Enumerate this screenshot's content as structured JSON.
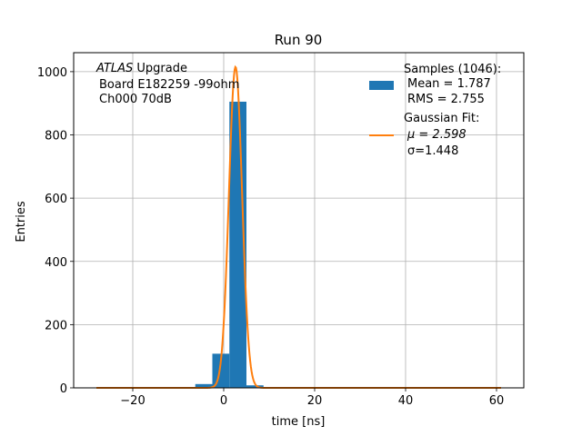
{
  "chart_data": {
    "type": "bar",
    "title": "Run 90",
    "xlabel": "time [ns]",
    "ylabel": "Entries",
    "xlim": [
      -33,
      66
    ],
    "ylim": [
      0,
      1060
    ],
    "xticks": [
      -20,
      0,
      20,
      40,
      60
    ],
    "yticks": [
      0,
      200,
      400,
      600,
      800,
      1000
    ],
    "xtick_labels": [
      "−20",
      "0",
      "20",
      "40",
      "60"
    ],
    "ytick_labels": [
      "0",
      "200",
      "400",
      "600",
      "800",
      "1000"
    ],
    "grid": true,
    "legend_placement": "top-right",
    "annotation": {
      "lines": [
        "ATLAS Upgrade",
        "Board E182259 -99ohm",
        "Ch000 70dB"
      ],
      "italic_word": "ATLAS",
      "rest_of_first_line": " Upgrade"
    },
    "histogram": {
      "name": "Samples (1046):",
      "mean_label": "Mean = 1.787",
      "rms_label": "RMS = 2.755",
      "color": "#1f77b4",
      "bins": [
        {
          "x0": -6.25,
          "x1": -2.5,
          "count": 12
        },
        {
          "x0": -2.5,
          "x1": 1.25,
          "count": 108
        },
        {
          "x0": 1.25,
          "x1": 5.0,
          "count": 905
        },
        {
          "x0": 5.0,
          "x1": 8.75,
          "count": 8
        }
      ]
    },
    "fit": {
      "name": "Gaussian Fit:",
      "mu_label": "μ = 2.598",
      "sigma_label": "σ=1.448",
      "mu": 2.598,
      "sigma": 1.448,
      "peak": 1015,
      "x_range": [
        -28,
        61
      ],
      "color": "#ff7f0e"
    }
  }
}
